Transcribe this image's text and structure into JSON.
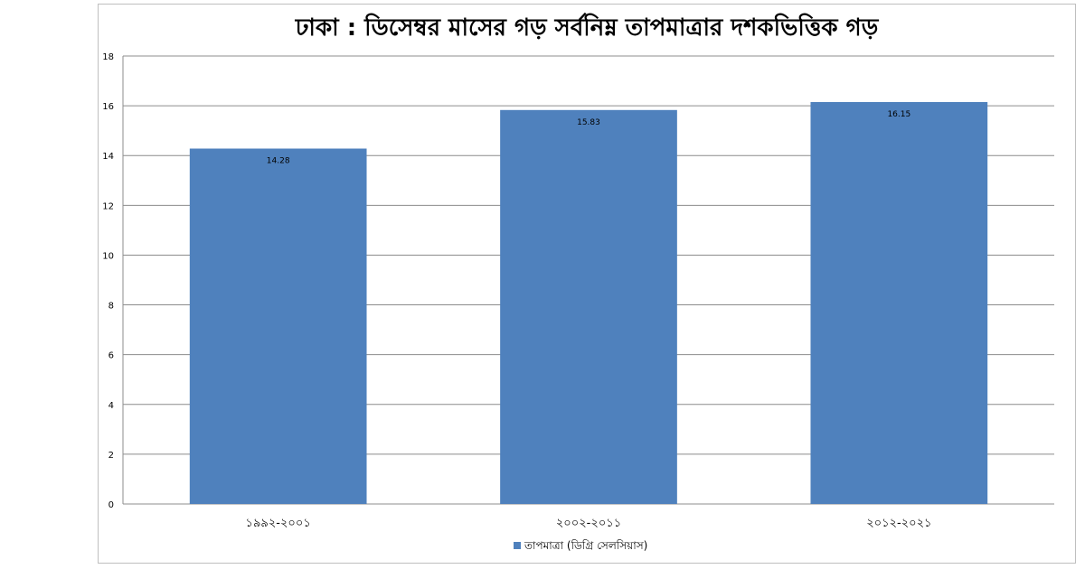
{
  "chart_data": {
    "type": "bar",
    "title": "ঢাকা : ডিসেম্বর মাসের গড় সর্বনিম্ন তাপমাত্রার দশকভিত্তিক গড়",
    "categories": [
      "১৯৯২-২০০১",
      "২০০২-২০১১",
      "২০১২-২০২১"
    ],
    "series": [
      {
        "name": "তাপমাত্রা (ডিগ্রি সেলসিয়াস)",
        "values": [
          14.28,
          15.83,
          16.15
        ],
        "color": "#4f81bd"
      }
    ],
    "ylim": [
      0,
      18
    ],
    "yticks": [
      0,
      2,
      4,
      6,
      8,
      10,
      12,
      14,
      16,
      18
    ],
    "grid": true,
    "legend_position": "bottom",
    "xlabel": "",
    "ylabel": ""
  }
}
